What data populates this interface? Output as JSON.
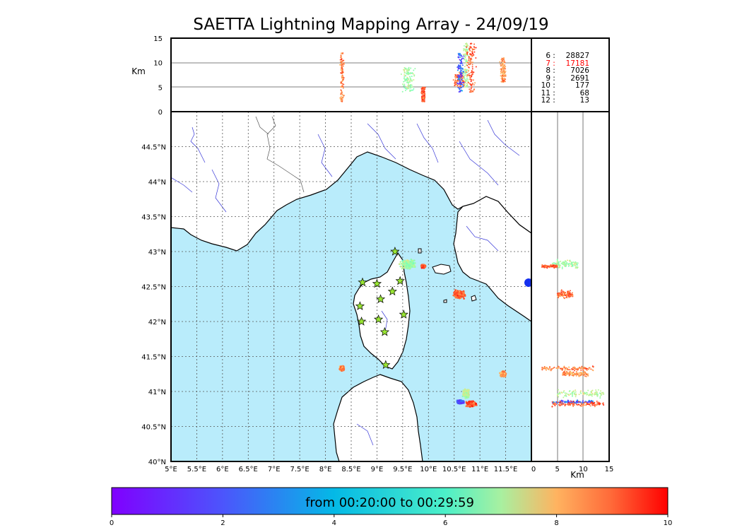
{
  "title": "SAETTA Lightning Mapping Array - 24/09/19",
  "top_panel": {
    "y_axis_title": "Km",
    "y_ticks": [
      "15",
      "10",
      "5",
      "0"
    ]
  },
  "right_panel": {
    "x_axis_title": "Km",
    "x_ticks": [
      "0",
      "5",
      "10",
      "15"
    ]
  },
  "legend_rows": [
    {
      "key": "6",
      "count": "28827",
      "highlight": false
    },
    {
      "key": "7",
      "count": "17181",
      "highlight": true
    },
    {
      "key": "8",
      "count": "7026",
      "highlight": false
    },
    {
      "key": "9",
      "count": "2691",
      "highlight": false
    },
    {
      "key": "10",
      "count": "177",
      "highlight": false
    },
    {
      "key": "11",
      "count": "68",
      "highlight": false
    },
    {
      "key": "12",
      "count": "13",
      "highlight": false
    }
  ],
  "colorbar": {
    "label": "from 00:20:00 to 00:29:59",
    "ticks": [
      "0",
      "2",
      "4",
      "6",
      "8",
      "10"
    ],
    "range": [
      0,
      10
    ]
  },
  "colors": {
    "sea": "#b9ecfb",
    "land": "#ffffff",
    "rivers": "#3838d8",
    "highlight": "#ff0000",
    "stations": "#99e633"
  },
  "chart_data": {
    "type": "scatter",
    "map": {
      "lon_range": [
        5,
        12
      ],
      "lat_range": [
        40,
        45
      ],
      "lon_ticks": [
        "5°E",
        "5.5°E",
        "6°E",
        "6.5°E",
        "7°E",
        "7.5°E",
        "8°E",
        "8.5°E",
        "9°E",
        "9.5°E",
        "10°E",
        "10.5°E",
        "11°E",
        "11.5°E"
      ],
      "lat_ticks": [
        "40°N",
        "40.5°N",
        "41°N",
        "41.5°N",
        "42°N",
        "42.5°N",
        "43°N",
        "43.5°N",
        "44°N",
        "44.5°N"
      ],
      "grid": true
    },
    "altitude_range_km": [
      0,
      15
    ],
    "stations": [
      {
        "lon": 9.35,
        "lat": 43.0
      },
      {
        "lon": 8.72,
        "lat": 42.56
      },
      {
        "lon": 9.0,
        "lat": 42.54
      },
      {
        "lon": 9.45,
        "lat": 42.58
      },
      {
        "lon": 9.3,
        "lat": 42.43
      },
      {
        "lon": 9.07,
        "lat": 42.32
      },
      {
        "lon": 8.67,
        "lat": 42.22
      },
      {
        "lon": 9.52,
        "lat": 42.1
      },
      {
        "lon": 8.7,
        "lat": 42.0
      },
      {
        "lon": 9.03,
        "lat": 42.03
      },
      {
        "lon": 9.15,
        "lat": 41.85
      },
      {
        "lon": 9.17,
        "lat": 41.38
      }
    ],
    "clusters": [
      {
        "lon": 8.32,
        "lat": 41.33,
        "rlon": 0.05,
        "rlat": 0.05,
        "alt_min": 2,
        "alt_max": 12,
        "t": 8.3
      },
      {
        "lon": 9.6,
        "lat": 42.82,
        "rlon": 0.18,
        "rlat": 0.08,
        "alt_min": 4,
        "alt_max": 9,
        "t": 5.5
      },
      {
        "lon": 9.9,
        "lat": 42.79,
        "rlon": 0.05,
        "rlat": 0.03,
        "alt_min": 2,
        "alt_max": 5,
        "t": 8.8
      },
      {
        "lon": 10.6,
        "lat": 42.39,
        "rlon": 0.14,
        "rlat": 0.07,
        "alt_min": 5,
        "alt_max": 8,
        "t": 8.6
      },
      {
        "lon": 10.73,
        "lat": 40.97,
        "rlon": 0.08,
        "rlat": 0.07,
        "alt_min": 5,
        "alt_max": 14,
        "t": 5.8
      },
      {
        "lon": 10.62,
        "lat": 40.85,
        "rlon": 0.08,
        "rlat": 0.03,
        "alt_min": 4,
        "alt_max": 12,
        "t": 1.2
      },
      {
        "lon": 10.83,
        "lat": 40.82,
        "rlon": 0.12,
        "rlat": 0.05,
        "alt_min": 4,
        "alt_max": 14,
        "t": 8.8
      },
      {
        "lon": 11.45,
        "lat": 41.25,
        "rlon": 0.07,
        "rlat": 0.05,
        "alt_min": 6,
        "alt_max": 11,
        "t": 8.0
      }
    ],
    "colormap": "rainbow"
  }
}
